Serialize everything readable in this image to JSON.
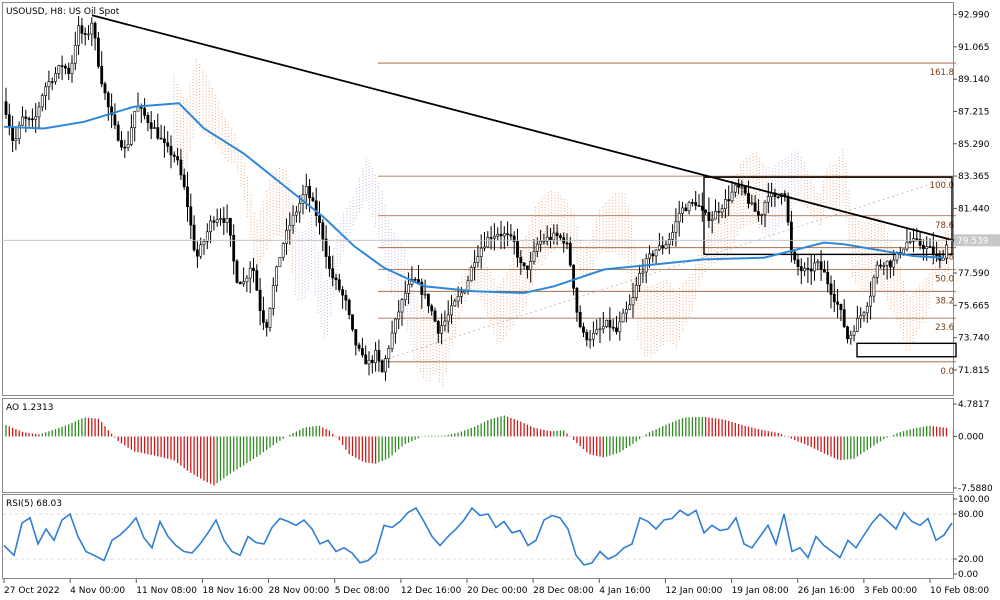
{
  "chart_data": [
    {
      "type": "candlestick",
      "title": "USOUSD, H8:  US Oil Spot",
      "symbol": "USOUSD",
      "timeframe": "H8",
      "instrument": "US Oil Spot",
      "current_price": "79.539",
      "ylim": [
        70.5,
        93.5
      ],
      "y_ticks": [
        "92.990",
        "91.065",
        "89.140",
        "87.215",
        "85.290",
        "83.365",
        "81.440",
        "79.515",
        "77.590",
        "75.665",
        "73.740",
        "71.815"
      ],
      "x_labels": [
        "27 Oct 2022",
        "4 Nov 00:00",
        "11 Nov 08:00",
        "18 Nov 16:00",
        "28 Nov 00:00",
        "5 Dec 08:00",
        "12 Dec 16:00",
        "20 Dec 00:00",
        "28 Dec 08:00",
        "4 Jan 16:00",
        "12 Jan 00:00",
        "19 Jan 08:00",
        "26 Jan 16:00",
        "3 Feb 00:00",
        "10 Feb 08:00"
      ],
      "close_path": [
        [
          0,
          87.8
        ],
        [
          10,
          85.2
        ],
        [
          18,
          86.8
        ],
        [
          30,
          86.5
        ],
        [
          40,
          88.6
        ],
        [
          48,
          89.2
        ],
        [
          58,
          90.0
        ],
        [
          66,
          89.5
        ],
        [
          74,
          92.2
        ],
        [
          82,
          91.5
        ],
        [
          88,
          92.6
        ],
        [
          96,
          89.5
        ],
        [
          104,
          87.5
        ],
        [
          112,
          86.0
        ],
        [
          122,
          84.8
        ],
        [
          132,
          87.6
        ],
        [
          140,
          87.0
        ],
        [
          150,
          86.2
        ],
        [
          162,
          85.0
        ],
        [
          172,
          84.5
        ],
        [
          182,
          82.2
        ],
        [
          192,
          78.4
        ],
        [
          200,
          79.5
        ],
        [
          208,
          80.8
        ],
        [
          216,
          81.0
        ],
        [
          224,
          80.6
        ],
        [
          232,
          77.3
        ],
        [
          240,
          77.0
        ],
        [
          248,
          78.3
        ],
        [
          256,
          75.5
        ],
        [
          262,
          74.3
        ],
        [
          270,
          77.0
        ],
        [
          278,
          79.2
        ],
        [
          286,
          80.5
        ],
        [
          294,
          81.5
        ],
        [
          302,
          82.6
        ],
        [
          310,
          81.5
        ],
        [
          318,
          80.0
        ],
        [
          326,
          77.6
        ],
        [
          334,
          76.8
        ],
        [
          342,
          75.8
        ],
        [
          350,
          73.6
        ],
        [
          358,
          72.5
        ],
        [
          366,
          72.2
        ],
        [
          372,
          72.8
        ],
        [
          378,
          71.6
        ],
        [
          386,
          73.5
        ],
        [
          394,
          75.2
        ],
        [
          402,
          76.5
        ],
        [
          410,
          77.2
        ],
        [
          418,
          76.5
        ],
        [
          426,
          75.6
        ],
        [
          434,
          74.2
        ],
        [
          442,
          74.8
        ],
        [
          452,
          75.9
        ],
        [
          462,
          76.8
        ],
        [
          470,
          78.4
        ],
        [
          478,
          79.2
        ],
        [
          486,
          79.8
        ],
        [
          494,
          80.0
        ],
        [
          502,
          79.8
        ],
        [
          510,
          79.4
        ],
        [
          518,
          77.8
        ],
        [
          526,
          78.0
        ],
        [
          534,
          79.4
        ],
        [
          542,
          79.6
        ],
        [
          552,
          79.8
        ],
        [
          562,
          79.5
        ],
        [
          568,
          77.6
        ],
        [
          574,
          74.8
        ],
        [
          580,
          73.8
        ],
        [
          588,
          73.8
        ],
        [
          596,
          74.2
        ],
        [
          604,
          74.6
        ],
        [
          612,
          74.0
        ],
        [
          620,
          75.1
        ],
        [
          628,
          75.8
        ],
        [
          636,
          77.6
        ],
        [
          644,
          78.4
        ],
        [
          652,
          79.0
        ],
        [
          660,
          79.2
        ],
        [
          668,
          79.9
        ],
        [
          676,
          81.3
        ],
        [
          684,
          81.6
        ],
        [
          692,
          81.8
        ],
        [
          700,
          81.0
        ],
        [
          708,
          80.9
        ],
        [
          716,
          81.5
        ],
        [
          724,
          82.0
        ],
        [
          732,
          82.7
        ],
        [
          740,
          82.4
        ],
        [
          748,
          81.5
        ],
        [
          756,
          80.9
        ],
        [
          764,
          82.4
        ],
        [
          772,
          81.9
        ],
        [
          780,
          82.8
        ],
        [
          788,
          78.4
        ],
        [
          796,
          77.8
        ],
        [
          804,
          77.6
        ],
        [
          812,
          78.2
        ],
        [
          820,
          77.6
        ],
        [
          828,
          76.4
        ],
        [
          836,
          75.4
        ],
        [
          844,
          73.6
        ],
        [
          852,
          74.6
        ],
        [
          860,
          75.4
        ],
        [
          866,
          76.2
        ],
        [
          872,
          77.9
        ],
        [
          880,
          78.3
        ],
        [
          888,
          78.1
        ],
        [
          896,
          78.9
        ],
        [
          904,
          79.5
        ],
        [
          912,
          79.4
        ],
        [
          920,
          79.2
        ],
        [
          928,
          78.9
        ],
        [
          936,
          78.2
        ],
        [
          944,
          79.5
        ]
      ],
      "ma_path": [
        [
          0,
          86.3
        ],
        [
          40,
          86.2
        ],
        [
          80,
          86.6
        ],
        [
          130,
          87.5
        ],
        [
          175,
          87.7
        ],
        [
          200,
          86.2
        ],
        [
          240,
          84.7
        ],
        [
          280,
          82.8
        ],
        [
          320,
          80.9
        ],
        [
          350,
          79.2
        ],
        [
          380,
          77.9
        ],
        [
          420,
          76.8
        ],
        [
          470,
          76.5
        ],
        [
          520,
          76.4
        ],
        [
          550,
          76.8
        ],
        [
          600,
          77.8
        ],
        [
          650,
          78.1
        ],
        [
          700,
          78.4
        ],
        [
          760,
          78.5
        ],
        [
          800,
          79.1
        ],
        [
          820,
          79.4
        ],
        [
          840,
          79.3
        ],
        [
          870,
          79.0
        ],
        [
          910,
          78.6
        ],
        [
          940,
          78.5
        ]
      ],
      "cloud_ranges": [
        [
          170,
          300
        ],
        [
          300,
          405
        ],
        [
          405,
          520
        ],
        [
          520,
          640
        ],
        [
          640,
          760
        ],
        [
          760,
          945
        ]
      ],
      "trendline": [
        [
          88,
          92.95
        ],
        [
          952,
          79.5
        ]
      ],
      "boxes": [
        {
          "x0": 700,
          "x1": 948,
          "y0": 78.7,
          "y1": 83.3
        },
        {
          "x0": 853,
          "x1": 952,
          "y0": 72.6,
          "y1": 73.4
        }
      ],
      "fibonacci": {
        "x_start": 374,
        "x_end": 952,
        "levels": [
          {
            "label": "161.8",
            "price": 90.1
          },
          {
            "label": "100.0",
            "price": 83.365
          },
          {
            "label": "78.6",
            "price": 81.0
          },
          {
            "label": "61.8",
            "price": 79.1
          },
          {
            "label": "50.0",
            "price": 77.8
          },
          {
            "label": "38.2",
            "price": 76.5
          },
          {
            "label": "23.6",
            "price": 74.9
          },
          {
            "label": "0.0",
            "price": 72.3
          }
        ]
      }
    },
    {
      "type": "histogram",
      "title": "AO 1.2313",
      "indicator": "AO",
      "value": "1.2313",
      "ylim": [
        -7.588,
        4.7817
      ],
      "y_ticks": [
        "4.7817",
        "0.000",
        "-7.5880"
      ],
      "up_color": "#2e8b1f",
      "down_color": "#d01818",
      "path": [
        [
          0,
          1.8
        ],
        [
          20,
          0.6
        ],
        [
          35,
          0.3
        ],
        [
          50,
          1.0
        ],
        [
          65,
          1.8
        ],
        [
          80,
          2.8
        ],
        [
          95,
          2.6
        ],
        [
          105,
          0.8
        ],
        [
          115,
          -0.8
        ],
        [
          130,
          -2.2
        ],
        [
          150,
          -2.8
        ],
        [
          170,
          -3.5
        ],
        [
          185,
          -5.2
        ],
        [
          200,
          -6.5
        ],
        [
          210,
          -7.2
        ],
        [
          225,
          -5.6
        ],
        [
          240,
          -4.2
        ],
        [
          255,
          -2.8
        ],
        [
          270,
          -1.2
        ],
        [
          285,
          0.2
        ],
        [
          300,
          1.3
        ],
        [
          315,
          1.6
        ],
        [
          325,
          0.9
        ],
        [
          335,
          -0.5
        ],
        [
          345,
          -2.6
        ],
        [
          360,
          -3.8
        ],
        [
          372,
          -4.0
        ],
        [
          385,
          -3.2
        ],
        [
          400,
          -1.2
        ],
        [
          420,
          0.1
        ],
        [
          440,
          0.1
        ],
        [
          455,
          0.6
        ],
        [
          470,
          1.4
        ],
        [
          485,
          2.5
        ],
        [
          500,
          3.1
        ],
        [
          515,
          2.3
        ],
        [
          530,
          1.3
        ],
        [
          545,
          0.8
        ],
        [
          560,
          0.9
        ],
        [
          570,
          -0.6
        ],
        [
          585,
          -2.6
        ],
        [
          600,
          -3.1
        ],
        [
          615,
          -2.4
        ],
        [
          630,
          -1.0
        ],
        [
          645,
          0.6
        ],
        [
          660,
          1.6
        ],
        [
          680,
          2.8
        ],
        [
          700,
          2.9
        ],
        [
          720,
          2.5
        ],
        [
          740,
          1.6
        ],
        [
          760,
          0.9
        ],
        [
          775,
          0.5
        ],
        [
          790,
          -0.5
        ],
        [
          805,
          -1.4
        ],
        [
          820,
          -2.5
        ],
        [
          835,
          -3.5
        ],
        [
          850,
          -3.3
        ],
        [
          865,
          -1.8
        ],
        [
          880,
          -0.4
        ],
        [
          895,
          0.6
        ],
        [
          910,
          1.2
        ],
        [
          925,
          1.6
        ],
        [
          945,
          1.2
        ]
      ]
    },
    {
      "type": "line",
      "title": "RSI(5) 68.03",
      "indicator": "RSI(5)",
      "value": "68.03",
      "ylim": [
        0,
        100
      ],
      "y_ticks": [
        "100.00",
        "80.00",
        "20.00",
        "0.00"
      ],
      "color": "#2f7fd6",
      "path": [
        [
          0,
          38
        ],
        [
          10,
          25
        ],
        [
          18,
          68
        ],
        [
          26,
          75
        ],
        [
          34,
          40
        ],
        [
          42,
          60
        ],
        [
          50,
          45
        ],
        [
          58,
          72
        ],
        [
          66,
          80
        ],
        [
          74,
          50
        ],
        [
          82,
          30
        ],
        [
          90,
          25
        ],
        [
          100,
          18
        ],
        [
          108,
          45
        ],
        [
          116,
          52
        ],
        [
          124,
          62
        ],
        [
          132,
          75
        ],
        [
          140,
          48
        ],
        [
          148,
          35
        ],
        [
          156,
          70
        ],
        [
          164,
          50
        ],
        [
          172,
          38
        ],
        [
          180,
          30
        ],
        [
          188,
          28
        ],
        [
          196,
          40
        ],
        [
          204,
          55
        ],
        [
          212,
          72
        ],
        [
          220,
          45
        ],
        [
          228,
          30
        ],
        [
          236,
          25
        ],
        [
          244,
          50
        ],
        [
          252,
          42
        ],
        [
          260,
          40
        ],
        [
          268,
          62
        ],
        [
          276,
          74
        ],
        [
          284,
          70
        ],
        [
          292,
          65
        ],
        [
          300,
          72
        ],
        [
          308,
          60
        ],
        [
          316,
          40
        ],
        [
          324,
          45
        ],
        [
          332,
          30
        ],
        [
          340,
          35
        ],
        [
          348,
          28
        ],
        [
          356,
          15
        ],
        [
          364,
          18
        ],
        [
          372,
          28
        ],
        [
          380,
          65
        ],
        [
          388,
          62
        ],
        [
          396,
          70
        ],
        [
          404,
          82
        ],
        [
          412,
          88
        ],
        [
          420,
          70
        ],
        [
          428,
          50
        ],
        [
          436,
          38
        ],
        [
          444,
          50
        ],
        [
          452,
          60
        ],
        [
          460,
          72
        ],
        [
          468,
          88
        ],
        [
          476,
          78
        ],
        [
          484,
          80
        ],
        [
          492,
          62
        ],
        [
          500,
          70
        ],
        [
          508,
          55
        ],
        [
          516,
          58
        ],
        [
          524,
          38
        ],
        [
          532,
          45
        ],
        [
          540,
          72
        ],
        [
          548,
          78
        ],
        [
          556,
          75
        ],
        [
          564,
          60
        ],
        [
          572,
          25
        ],
        [
          580,
          12
        ],
        [
          588,
          15
        ],
        [
          596,
          30
        ],
        [
          604,
          20
        ],
        [
          612,
          25
        ],
        [
          620,
          35
        ],
        [
          628,
          40
        ],
        [
          636,
          75
        ],
        [
          644,
          70
        ],
        [
          652,
          60
        ],
        [
          660,
          72
        ],
        [
          668,
          74
        ],
        [
          676,
          85
        ],
        [
          684,
          78
        ],
        [
          692,
          85
        ],
        [
          700,
          55
        ],
        [
          708,
          65
        ],
        [
          716,
          58
        ],
        [
          724,
          60
        ],
        [
          732,
          75
        ],
        [
          740,
          40
        ],
        [
          748,
          35
        ],
        [
          756,
          50
        ],
        [
          764,
          65
        ],
        [
          772,
          40
        ],
        [
          780,
          80
        ],
        [
          788,
          30
        ],
        [
          796,
          35
        ],
        [
          804,
          22
        ],
        [
          812,
          50
        ],
        [
          820,
          38
        ],
        [
          828,
          30
        ],
        [
          836,
          22
        ],
        [
          844,
          45
        ],
        [
          852,
          35
        ],
        [
          860,
          52
        ],
        [
          868,
          68
        ],
        [
          876,
          80
        ],
        [
          884,
          70
        ],
        [
          892,
          60
        ],
        [
          900,
          82
        ],
        [
          908,
          70
        ],
        [
          916,
          65
        ],
        [
          924,
          74
        ],
        [
          932,
          45
        ],
        [
          940,
          52
        ],
        [
          948,
          68
        ]
      ]
    }
  ]
}
